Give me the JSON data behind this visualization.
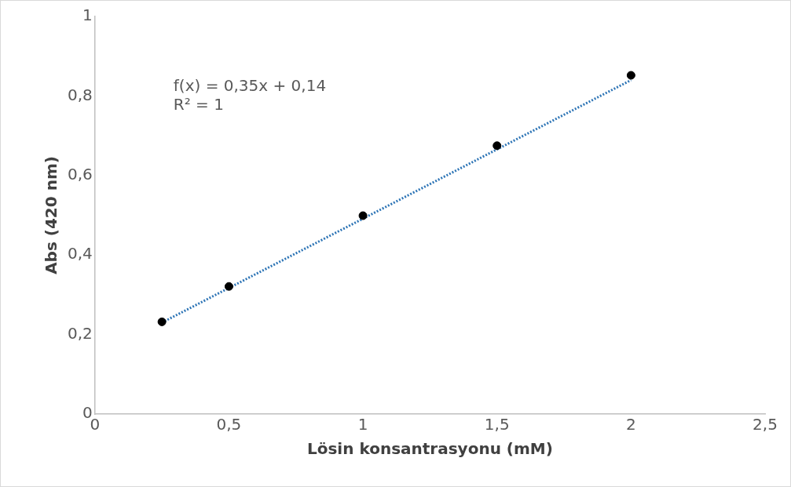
{
  "chart_data": {
    "type": "scatter",
    "xlabel": "Lösin konsantrasyonu (mM)",
    "ylabel": "Abs (420 nm)",
    "annotations": [
      "f(x) = 0,35x + 0,14",
      "R² = 1"
    ],
    "series": [
      {
        "color": "#000000",
        "marker": "circle",
        "x": [
          0.25,
          0.5,
          1,
          1.5,
          2
        ],
        "values": [
          0.232,
          0.321,
          0.499,
          0.675,
          0.852
        ]
      },
      {
        "type": "line",
        "color": "#2e75b6",
        "line_style": "dotted",
        "marker": "none",
        "x": [
          0.25,
          2
        ],
        "values": [
          0.23,
          0.84
        ]
      }
    ],
    "xlim": [
      0,
      2.5
    ],
    "xticks": [
      0,
      {
        "value": 0.5,
        "label": "0,5"
      },
      1,
      {
        "value": 1.5,
        "label": "1,5"
      },
      2,
      {
        "value": 2.5,
        "label": "2,5"
      }
    ],
    "ylim": [
      0,
      1
    ],
    "yticks": [
      0,
      {
        "value": 0.2,
        "label": "0,2"
      },
      {
        "value": 0.4,
        "label": "0,4"
      },
      {
        "value": 0.6,
        "label": "0,6"
      },
      {
        "value": 0.8,
        "label": "0,8"
      },
      1
    ],
    "grid": false,
    "legend": false
  }
}
